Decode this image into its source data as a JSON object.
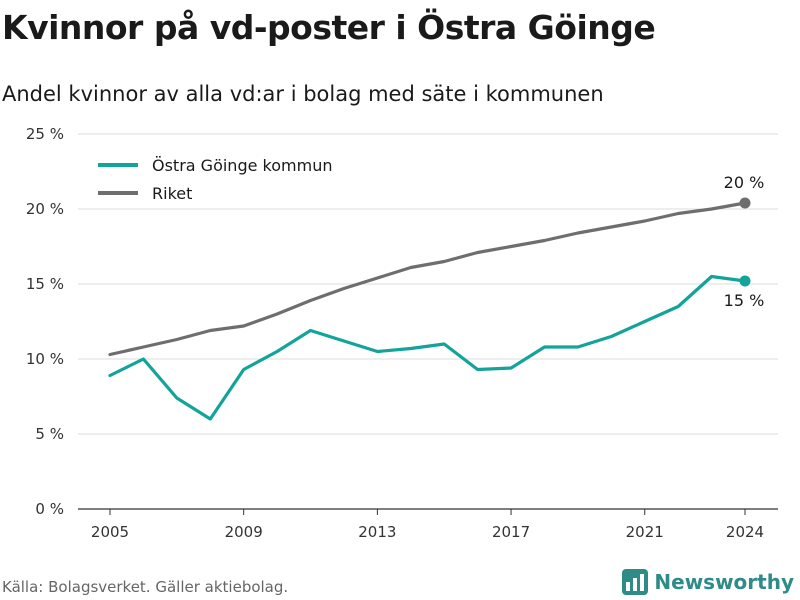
{
  "title": "Kvinnor på vd-poster i Östra Göinge",
  "subtitle": "Andel kvinnor av alla vd:ar i bolag med säte i kommunen",
  "source": "Källa: Bolagsverket. Gäller aktiebolag.",
  "brand": {
    "name": "Newsworthy",
    "icon": "newsworthy-bar-chart-logo-icon"
  },
  "chart_data": {
    "type": "line",
    "title": "",
    "xlabel": "",
    "ylabel": "",
    "x": [
      2005,
      2006,
      2007,
      2008,
      2009,
      2010,
      2011,
      2012,
      2013,
      2014,
      2015,
      2016,
      2017,
      2018,
      2019,
      2020,
      2021,
      2022,
      2023,
      2024
    ],
    "x_ticks": [
      2005,
      2009,
      2013,
      2017,
      2021,
      2024
    ],
    "x_tick_labels": [
      "2005",
      "2009",
      "2013",
      "2017",
      "2021",
      "2024"
    ],
    "ylim": [
      0,
      25
    ],
    "y_ticks": [
      0,
      5,
      10,
      15,
      20,
      25
    ],
    "y_tick_labels": [
      "0 %",
      "5 %",
      "10 %",
      "15 %",
      "20 %",
      "25 %"
    ],
    "grid": true,
    "legend_position": "top-left",
    "series": [
      {
        "name": "Östra Göinge kommun",
        "color": "#12a39a",
        "values": [
          8.9,
          10.0,
          7.4,
          6.0,
          9.3,
          10.5,
          11.9,
          11.2,
          10.5,
          10.7,
          11.0,
          9.3,
          9.4,
          10.8,
          10.8,
          11.5,
          12.5,
          13.5,
          15.5,
          15.2
        ],
        "end_label": "15 %"
      },
      {
        "name": "Riket",
        "color": "#6e6e70",
        "values": [
          10.3,
          10.8,
          11.3,
          11.9,
          12.2,
          13.0,
          13.9,
          14.7,
          15.4,
          16.1,
          16.5,
          17.1,
          17.5,
          17.9,
          18.4,
          18.8,
          19.2,
          19.7,
          20.0,
          20.4
        ],
        "end_label": "20 %"
      }
    ]
  }
}
